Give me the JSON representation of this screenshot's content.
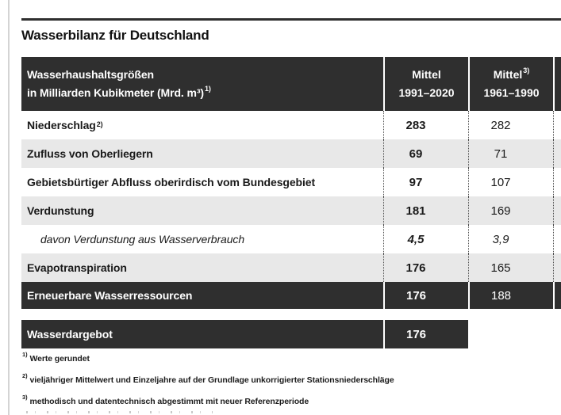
{
  "title": "Wasserbilanz für Deutschland",
  "table": {
    "header": {
      "label_line1": "Wasserhaushaltsgrößen",
      "label_line2": "in Milliarden Kubikmeter (Mrd. m³)",
      "label_sup": "1)",
      "col1_line1": "Mittel",
      "col1_line2": "1991–2020",
      "col2_line1": "Mittel",
      "col2_sup": "3)",
      "col2_line2": "1961–1990"
    },
    "rows": [
      {
        "label": "Niederschlag",
        "sup": "2)",
        "v1": "283",
        "v2": "282"
      },
      {
        "label": "Zufluss von Oberliegern",
        "v1": "69",
        "v2": "71"
      },
      {
        "label": "Gebietsbürtiger Abfluss oberirdisch vom Bundesgebiet",
        "v1": "97",
        "v2": "107"
      },
      {
        "label": "Verdunstung",
        "v1": "181",
        "v2": "169"
      },
      {
        "label": "davon Verdunstung aus Wasserverbrauch",
        "v1": "4,5",
        "v2": "3,9"
      },
      {
        "label": "Evapotranspiration",
        "v1": "176",
        "v2": "165"
      },
      {
        "label": "Erneuerbare Wasserressourcen",
        "v1": "176",
        "v2": "188"
      }
    ],
    "summary": {
      "label": "Wasserdargebot",
      "v1": "176"
    }
  },
  "footnotes": [
    {
      "sup": "1)",
      "text": "Werte gerundet"
    },
    {
      "sup": "2)",
      "text": "vieljähriger Mittelwert und Einzeljahre auf der Grundlage unkorrigierter Stationsniederschläge"
    },
    {
      "sup": "3)",
      "text": "methodisch und datentechnisch abgestimmt mit neuer Referenzperiode"
    }
  ],
  "colors": {
    "dark_row": "#2f2f2f",
    "gray_row": "#e8e8e8",
    "page_background": "#ffffff",
    "page_border": "#d4d4d4"
  },
  "chart_data": {
    "type": "table",
    "title": "Wasserbilanz für Deutschland",
    "columns": [
      "Wasserhaushaltsgrößen in Milliarden Kubikmeter (Mrd. m³) 1)",
      "Mittel 1991–2020",
      "Mittel 3) 1961–1990"
    ],
    "rows": [
      [
        "Niederschlag 2)",
        283,
        282
      ],
      [
        "Zufluss von Oberliegern",
        69,
        71
      ],
      [
        "Gebietsbürtiger Abfluss oberirdisch vom Bundesgebiet",
        97,
        107
      ],
      [
        "Verdunstung",
        181,
        169
      ],
      [
        "davon Verdunstung aus Wasserverbrauch",
        4.5,
        3.9
      ],
      [
        "Evapotranspiration",
        176,
        165
      ],
      [
        "Erneuerbare Wasserressourcen",
        176,
        188
      ],
      [
        "Wasserdargebot",
        176,
        null
      ]
    ]
  }
}
